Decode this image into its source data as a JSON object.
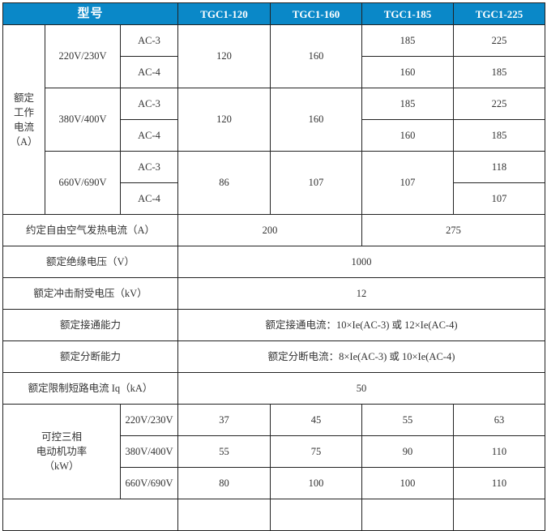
{
  "header": {
    "model_label": "型号",
    "models": [
      "TGC1-120",
      "TGC1-160",
      "TGC1-185",
      "TGC1-225"
    ]
  },
  "current": {
    "label_lines": [
      "额定",
      "工作",
      "电流",
      "（A）"
    ],
    "groups": [
      {
        "voltage": "220V/230V",
        "ac3": "AC-3",
        "ac4": "AC-4",
        "v120": "120",
        "v160": "160",
        "v185_ac3": "185",
        "v185_ac4": "160",
        "v225_ac3": "225",
        "v225_ac4": "185"
      },
      {
        "voltage": "380V/400V",
        "ac3": "AC-3",
        "ac4": "AC-4",
        "v120": "120",
        "v160": "160",
        "v185_ac3": "185",
        "v185_ac4": "160",
        "v225_ac3": "225",
        "v225_ac4": "185"
      },
      {
        "voltage": "660V/690V",
        "ac3": "AC-3",
        "ac4": "AC-4",
        "v120": "86",
        "v160": "107",
        "v185": "107",
        "v225_ac3": "118",
        "v225_ac4": "107"
      }
    ]
  },
  "thermal": {
    "label": "约定自由空气发热电流（A）",
    "v1": "200",
    "v2": "275"
  },
  "insulation": {
    "label": "额定绝缘电压（V）",
    "value": "1000"
  },
  "impulse": {
    "label": "额定冲击耐受电压（kV）",
    "value": "12"
  },
  "making": {
    "label": "额定接通能力",
    "value": "额定接通电流：10×Ie(AC-3) 或 12×Ie(AC-4)"
  },
  "breaking": {
    "label": "额定分断能力",
    "value": "额定分断电流：8×Ie(AC-3) 或 10×Ie(AC-4)"
  },
  "shortcircuit": {
    "label": "额定限制短路电流 Iq（kA）",
    "value": "50"
  },
  "motor": {
    "label_lines": [
      "可控三相",
      "电动机功率",
      "（kW）"
    ],
    "rows": [
      {
        "voltage": "220V/230V",
        "values": [
          "37",
          "45",
          "55",
          "63"
        ]
      },
      {
        "voltage": "380V/400V",
        "values": [
          "55",
          "75",
          "90",
          "110"
        ]
      },
      {
        "voltage": "660V/690V",
        "values": [
          "80",
          "100",
          "100",
          "110"
        ]
      }
    ]
  },
  "colors": {
    "header_bg": "#0a88c8",
    "header_text": "#ffffff",
    "border": "#222222"
  }
}
